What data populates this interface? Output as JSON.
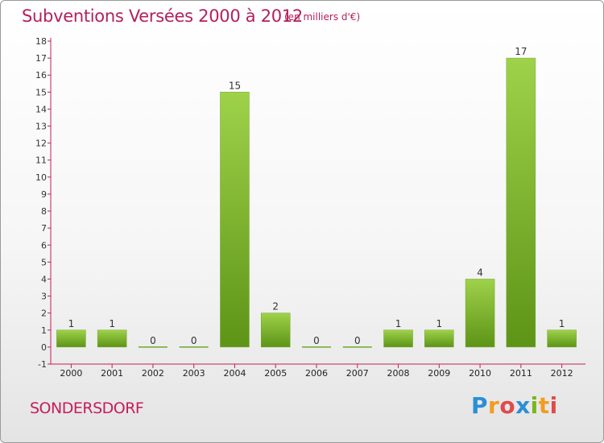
{
  "header": {
    "title": "Subventions Versées 2000 à 2012",
    "subtitle": "(en milliers d'€)"
  },
  "footer": {
    "commune": "SONDERSDORF",
    "logo": {
      "letters": [
        "P",
        "r",
        "o",
        "x",
        "i",
        "t",
        "i"
      ],
      "colors": [
        "#2a8fd6",
        "#f39c1f",
        "#e04b4b",
        "#2a8fd6",
        "#7ab51d",
        "#f39c1f",
        "#e04b4b"
      ]
    }
  },
  "chart_data": {
    "type": "bar",
    "categories": [
      "2000",
      "2001",
      "2002",
      "2003",
      "2004",
      "2005",
      "2006",
      "2007",
      "2008",
      "2009",
      "2010",
      "2011",
      "2012"
    ],
    "values": [
      1,
      1,
      0,
      0,
      15,
      2,
      0,
      0,
      1,
      1,
      4,
      17,
      1
    ],
    "data_labels": [
      "1",
      "1",
      "0",
      "0",
      "15",
      "2",
      "0",
      "0",
      "1",
      "1",
      "4",
      "17",
      "1"
    ],
    "ylim": [
      -1,
      18
    ],
    "yticks": [
      "-1",
      "0",
      "1",
      "2",
      "3",
      "4",
      "5",
      "6",
      "7",
      "8",
      "9",
      "10",
      "11",
      "12",
      "13",
      "14",
      "15",
      "16",
      "17",
      "18"
    ],
    "grid": false,
    "colors": {
      "bar_light": "#9fd24a",
      "bar_dark": "#5d9417",
      "axis": "#c41e5a"
    }
  }
}
